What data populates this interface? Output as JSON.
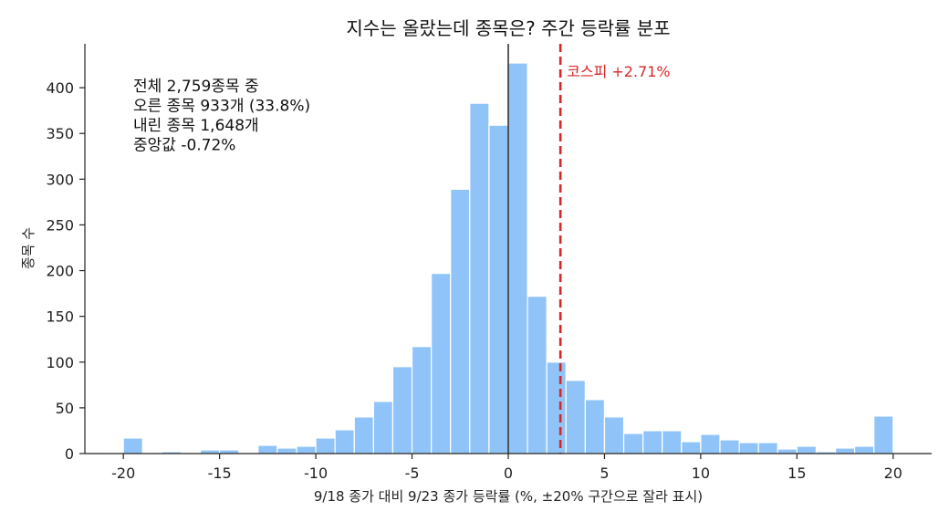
{
  "chart_data": {
    "type": "bar",
    "title": "지수는 올랐는데 종목은? 주간 등락률 분포",
    "xlabel": "9/18 종가 대비 9/23 종가 등락률 (%, ±20% 구간으로 잘라 표시)",
    "ylabel": "종목 수",
    "xlim": [
      -22,
      22
    ],
    "ylim": [
      0,
      448
    ],
    "xticks": [
      -20,
      -15,
      -10,
      -5,
      0,
      5,
      10,
      15,
      20
    ],
    "yticks": [
      0,
      50,
      100,
      150,
      200,
      250,
      300,
      350,
      400
    ],
    "bin_width": 1,
    "bins": [
      {
        "x": -20,
        "count": 17
      },
      {
        "x": -19,
        "count": 0
      },
      {
        "x": -18,
        "count": 2
      },
      {
        "x": -17,
        "count": 0
      },
      {
        "x": -16,
        "count": 4
      },
      {
        "x": -15,
        "count": 4
      },
      {
        "x": -14,
        "count": 0
      },
      {
        "x": -13,
        "count": 9
      },
      {
        "x": -12,
        "count": 6
      },
      {
        "x": -11,
        "count": 8
      },
      {
        "x": -10,
        "count": 17
      },
      {
        "x": -9,
        "count": 26
      },
      {
        "x": -8,
        "count": 40
      },
      {
        "x": -7,
        "count": 57
      },
      {
        "x": -6,
        "count": 95
      },
      {
        "x": -5,
        "count": 117
      },
      {
        "x": -4,
        "count": 197
      },
      {
        "x": -3,
        "count": 289
      },
      {
        "x": -2,
        "count": 383
      },
      {
        "x": -1,
        "count": 359
      },
      {
        "x": 0,
        "count": 427
      },
      {
        "x": 1,
        "count": 172
      },
      {
        "x": 2,
        "count": 100
      },
      {
        "x": 3,
        "count": 80
      },
      {
        "x": 4,
        "count": 59
      },
      {
        "x": 5,
        "count": 40
      },
      {
        "x": 6,
        "count": 22
      },
      {
        "x": 7,
        "count": 25
      },
      {
        "x": 8,
        "count": 25
      },
      {
        "x": 9,
        "count": 13
      },
      {
        "x": 10,
        "count": 21
      },
      {
        "x": 11,
        "count": 15
      },
      {
        "x": 12,
        "count": 12
      },
      {
        "x": 13,
        "count": 12
      },
      {
        "x": 14,
        "count": 5
      },
      {
        "x": 15,
        "count": 8
      },
      {
        "x": 16,
        "count": 2
      },
      {
        "x": 17,
        "count": 6
      },
      {
        "x": 18,
        "count": 8
      },
      {
        "x": 19,
        "count": 41
      }
    ],
    "reference_lines": [
      {
        "x": 0,
        "style": "solid",
        "color": "#333333",
        "label": ""
      },
      {
        "x": 2.71,
        "style": "dashed",
        "color": "#d62728",
        "label": "코스피 +2.71%"
      }
    ],
    "annotations": [
      "전체 2,759종목 중",
      "오른 종목 933개 (33.8%)",
      "내린 종목 1,648개",
      "중앙값 -0.72%"
    ],
    "grid": false,
    "bar_color": "#90c4f9",
    "bar_edge_color": "#ffffff"
  }
}
